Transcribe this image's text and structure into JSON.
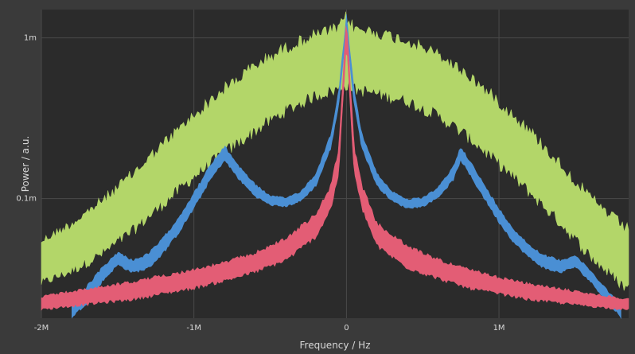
{
  "chart_data": {
    "type": "line",
    "title": "",
    "xlabel": "Frequency / Hz",
    "ylabel": "Power / a.u.",
    "x_scale": "linear",
    "y_scale": "log",
    "xlim": [
      -2000000,
      1850000
    ],
    "ylim": [
      1.8e-05,
      0.0015
    ],
    "grid": true,
    "legend": "none",
    "x_ticks": [
      {
        "value": -2000000,
        "label": "-2M"
      },
      {
        "value": -1000000,
        "label": "-1M"
      },
      {
        "value": 0,
        "label": "0"
      },
      {
        "value": 1000000,
        "label": "1M"
      }
    ],
    "y_ticks": [
      {
        "value": 0.0001,
        "label": "0.1m"
      },
      {
        "value": 0.001,
        "label": "1m"
      }
    ],
    "colors": {
      "background": "#3a3a3a",
      "plot_area": "#2b2b2b",
      "grid": "#4a4a4a"
    },
    "series": [
      {
        "color": "#b3d669",
        "x": [
          -2000000,
          -1800000,
          -1600000,
          -1400000,
          -1200000,
          -1000000,
          -800000,
          -600000,
          -400000,
          -200000,
          -50000,
          0,
          50000,
          200000,
          400000,
          600000,
          800000,
          1000000,
          1200000,
          1400000,
          1600000,
          1800000,
          1850000
        ],
        "upper": [
          5.8e-05,
          7.5e-05,
          0.000105,
          0.000155,
          0.00024,
          0.00036,
          0.00053,
          0.00074,
          0.00095,
          0.00115,
          0.00125,
          0.0015,
          0.00125,
          0.00118,
          0.00105,
          0.00086,
          0.00064,
          0.00044,
          0.00029,
          0.00018,
          0.00011,
          7.5e-05,
          7e-05
        ],
        "lower": [
          2.8e-05,
          3.3e-05,
          4.2e-05,
          5.8e-05,
          8.5e-05,
          0.000125,
          0.000175,
          0.00024,
          0.00032,
          0.0004,
          0.00044,
          0.00047,
          0.00044,
          0.00041,
          0.00037,
          0.0003,
          0.00022,
          0.00015,
          0.0001,
          6.5e-05,
          4e-05,
          2.7e-05,
          2.5e-05
        ]
      },
      {
        "color": "#4a8fd4",
        "x": [
          -1800000,
          -1700000,
          -1600000,
          -1500000,
          -1400000,
          -1300000,
          -1200000,
          -1100000,
          -1000000,
          -900000,
          -800000,
          -700000,
          -600000,
          -500000,
          -400000,
          -300000,
          -200000,
          -100000,
          -50000,
          0,
          50000,
          100000,
          200000,
          300000,
          400000,
          500000,
          600000,
          700000,
          750000,
          800000,
          900000,
          1000000,
          1100000,
          1200000,
          1300000,
          1400000,
          1500000,
          1600000,
          1700000,
          1800000
        ],
        "upper": [
          2.2e-05,
          2.9e-05,
          3.8e-05,
          4.7e-05,
          4.2e-05,
          4.6e-05,
          5.8e-05,
          7.8e-05,
          0.00011,
          0.00016,
          0.000215,
          0.00016,
          0.000125,
          0.000105,
          0.000102,
          0.000112,
          0.000145,
          0.00026,
          0.00048,
          0.0014,
          0.00048,
          0.00026,
          0.000145,
          0.000112,
          0.0001,
          0.000102,
          0.000118,
          0.00016,
          0.000215,
          0.00018,
          0.000125,
          8.8e-05,
          6.5e-05,
          5.2e-05,
          4.5e-05,
          4.2e-05,
          4.5e-05,
          3.6e-05,
          2.8e-05,
          2.2e-05
        ],
        "lower": [
          1.8e-05,
          2.2e-05,
          3e-05,
          3.8e-05,
          3.4e-05,
          3.6e-05,
          4.5e-05,
          6e-05,
          8.5e-05,
          0.000125,
          0.00017,
          0.000128,
          0.000102,
          9e-05,
          8.8e-05,
          9.5e-05,
          0.000118,
          0.000205,
          0.00038,
          0.0011,
          0.00038,
          0.000205,
          0.000118,
          9.5e-05,
          8.6e-05,
          8.8e-05,
          0.0001,
          0.000128,
          0.00017,
          0.000142,
          0.0001,
          7e-05,
          5.2e-05,
          4.2e-05,
          3.6e-05,
          3.4e-05,
          3.7e-05,
          3e-05,
          2.3e-05,
          1.8e-05
        ]
      },
      {
        "color": "#e35d75",
        "x": [
          -2000000,
          -1800000,
          -1600000,
          -1400000,
          -1200000,
          -1000000,
          -800000,
          -600000,
          -400000,
          -200000,
          -100000,
          -50000,
          0,
          50000,
          100000,
          200000,
          400000,
          600000,
          800000,
          1000000,
          1200000,
          1400000,
          1600000,
          1850000
        ],
        "upper": [
          2.5e-05,
          2.7e-05,
          2.9e-05,
          3.1e-05,
          3.4e-05,
          3.7e-05,
          4.1e-05,
          4.7e-05,
          5.8e-05,
          8.2e-05,
          0.000125,
          0.00022,
          0.0014,
          0.00022,
          0.000125,
          7.2e-05,
          5.2e-05,
          4.3e-05,
          3.7e-05,
          3.3e-05,
          3e-05,
          2.8e-05,
          2.6e-05,
          2.4e-05
        ],
        "lower": [
          2e-05,
          2.1e-05,
          2.2e-05,
          2.3e-05,
          2.5e-05,
          2.7e-05,
          3e-05,
          3.4e-05,
          4e-05,
          5.6e-05,
          8.5e-05,
          0.00014,
          0.0009,
          0.00014,
          8.5e-05,
          4.9e-05,
          3.6e-05,
          3.1e-05,
          2.7e-05,
          2.5e-05,
          2.3e-05,
          2.2e-05,
          2.1e-05,
          2e-05
        ]
      }
    ]
  }
}
